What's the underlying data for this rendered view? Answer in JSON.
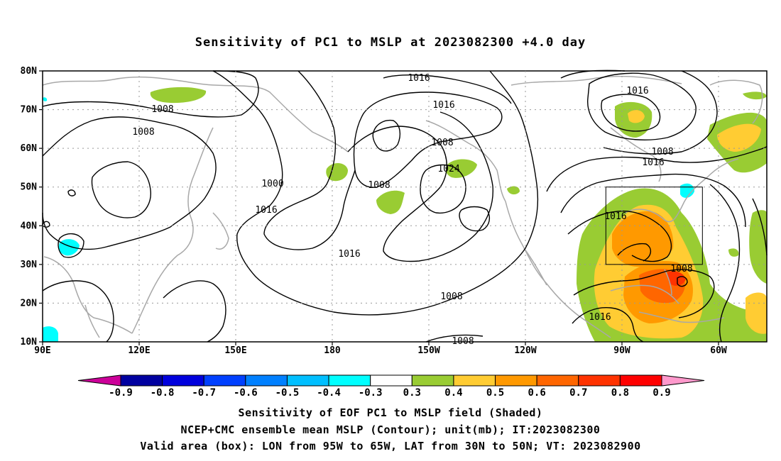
{
  "title": "Sensitivity of PC1 to MSLP at 2023082300 +4.0 day",
  "map": {
    "lon_ticks": [
      "90E",
      "120E",
      "150E",
      "180",
      "150W",
      "120W",
      "90W",
      "60W"
    ],
    "lat_ticks": [
      "80N",
      "70N",
      "60N",
      "50N",
      "40N",
      "30N",
      "20N",
      "10N"
    ],
    "contour_labels": [
      "1016",
      "1008",
      "1008",
      "1016",
      "1016",
      "1000",
      "1008",
      "1016",
      "1024",
      "1008",
      "1008",
      "1016",
      "1016",
      "1016",
      "1008",
      "1016",
      "1008",
      "1008"
    ],
    "box": {
      "lon_west": "95W",
      "lon_east": "65W",
      "lat_south": "30N",
      "lat_north": "50N"
    }
  },
  "colorbar": {
    "labels": [
      "-0.9",
      "-0.8",
      "-0.7",
      "-0.6",
      "-0.5",
      "-0.4",
      "-0.3",
      "0.3",
      "0.4",
      "0.5",
      "0.6",
      "0.7",
      "0.8",
      "0.9"
    ],
    "colors": [
      "#cc0099",
      "#0000a0",
      "#0000dd",
      "#0040ff",
      "#0080ff",
      "#00bfff",
      "#00ffff",
      "#ffffff",
      "#99cc33",
      "#ffcc33",
      "#ff9900",
      "#ff6600",
      "#ff3300",
      "#ff0000",
      "#ff99cc"
    ]
  },
  "captions": {
    "line1": "Sensitivity of EOF PC1 to MSLP field (Shaded)",
    "line2": "NCEP+CMC ensemble mean MSLP (Contour); unit(mb); IT:2023082300",
    "line3": "Valid area (box): LON from 95W to 65W, LAT from 30N to 50N; VT: 2023082900"
  }
}
